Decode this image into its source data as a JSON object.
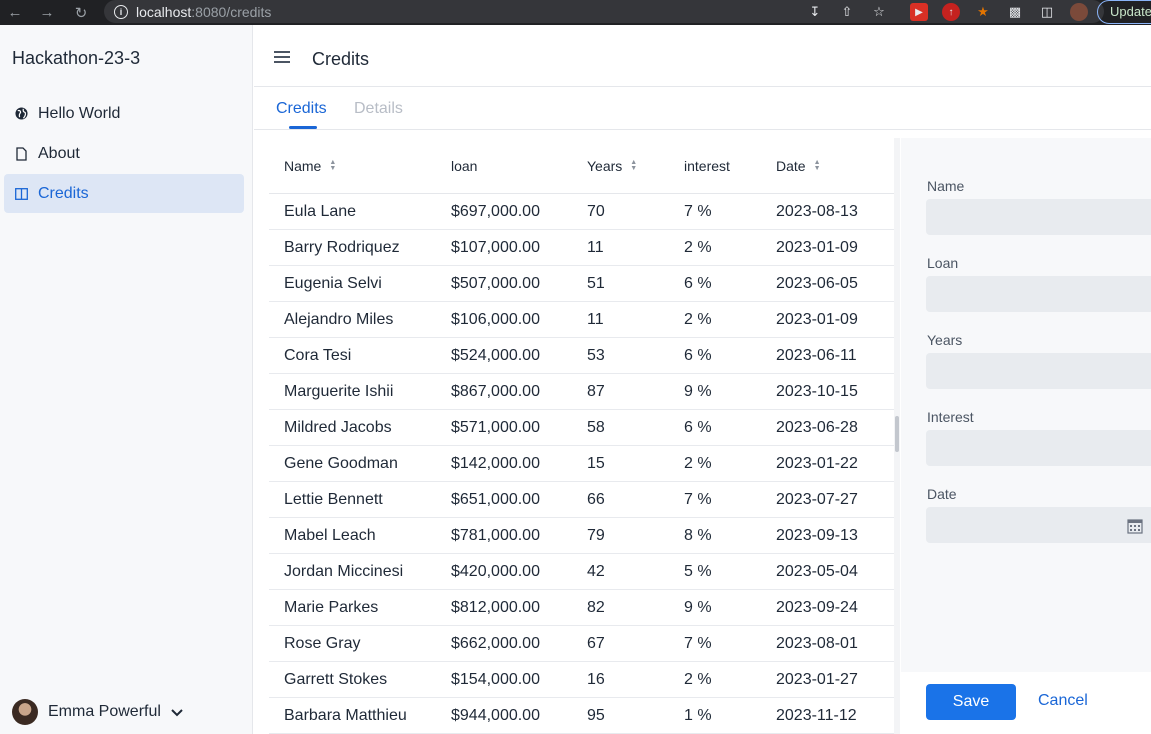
{
  "browser": {
    "host": "localhost",
    "path": ":8080/credits",
    "update_label": "Update"
  },
  "app": {
    "title": "Hackathon-23-3"
  },
  "nav": [
    {
      "label": "Hello World",
      "icon": "globe-icon"
    },
    {
      "label": "About",
      "icon": "file-icon"
    },
    {
      "label": "Credits",
      "icon": "columns-icon",
      "active": true
    }
  ],
  "user": {
    "name": "Emma Powerful"
  },
  "header": {
    "title": "Credits"
  },
  "tabs": [
    {
      "label": "Credits",
      "active": true
    },
    {
      "label": "Details",
      "active": false
    }
  ],
  "grid": {
    "columns": [
      "Name",
      "loan",
      "Years",
      "interest",
      "Date"
    ],
    "rows": [
      [
        "Eula Lane",
        "$697,000.00",
        "70",
        "7 %",
        "2023-08-13"
      ],
      [
        "Barry Rodriquez",
        "$107,000.00",
        "11",
        "2 %",
        "2023-01-09"
      ],
      [
        "Eugenia Selvi",
        "$507,000.00",
        "51",
        "6 %",
        "2023-06-05"
      ],
      [
        "Alejandro Miles",
        "$106,000.00",
        "11",
        "2 %",
        "2023-01-09"
      ],
      [
        "Cora Tesi",
        "$524,000.00",
        "53",
        "6 %",
        "2023-06-11"
      ],
      [
        "Marguerite Ishii",
        "$867,000.00",
        "87",
        "9 %",
        "2023-10-15"
      ],
      [
        "Mildred Jacobs",
        "$571,000.00",
        "58",
        "6 %",
        "2023-06-28"
      ],
      [
        "Gene Goodman",
        "$142,000.00",
        "15",
        "2 %",
        "2023-01-22"
      ],
      [
        "Lettie Bennett",
        "$651,000.00",
        "66",
        "7 %",
        "2023-07-27"
      ],
      [
        "Mabel Leach",
        "$781,000.00",
        "79",
        "8 %",
        "2023-09-13"
      ],
      [
        "Jordan Miccinesi",
        "$420,000.00",
        "42",
        "5 %",
        "2023-05-04"
      ],
      [
        "Marie Parkes",
        "$812,000.00",
        "82",
        "9 %",
        "2023-09-24"
      ],
      [
        "Rose Gray",
        "$662,000.00",
        "67",
        "7 %",
        "2023-08-01"
      ],
      [
        "Garrett Stokes",
        "$154,000.00",
        "16",
        "2 %",
        "2023-01-27"
      ],
      [
        "Barbara Matthieu",
        "$944,000.00",
        "95",
        "1 %",
        "2023-11-12"
      ]
    ]
  },
  "form": {
    "labels": [
      "Name",
      "Loan",
      "Years",
      "Interest",
      "Date"
    ],
    "save_label": "Save",
    "cancel_label": "Cancel"
  },
  "colors": {
    "accent": "#1a73e8",
    "sidebar_bg": "#f7f8fa",
    "selected_bg": "#dde6f5"
  }
}
